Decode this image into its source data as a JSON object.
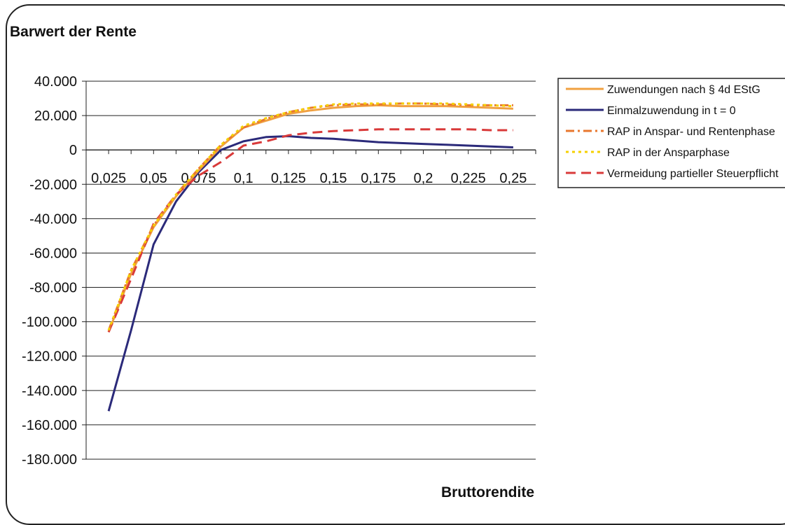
{
  "chart_data": {
    "type": "line",
    "title": "Barwert der Rente",
    "xlabel": "Bruttorendite",
    "ylabel": "",
    "x": [
      0.025,
      0.0375,
      0.05,
      0.0625,
      0.075,
      0.0875,
      0.1,
      0.1125,
      0.125,
      0.1375,
      0.15,
      0.1625,
      0.175,
      0.1875,
      0.2,
      0.2125,
      0.225,
      0.2375,
      0.25
    ],
    "x_tick_labels": [
      "0,025",
      "0,05",
      "0,075",
      "0,1",
      "0,125",
      "0,15",
      "0,175",
      "0,2",
      "0,225",
      "0,25"
    ],
    "ylim": [
      -180000,
      40000
    ],
    "y_tick_labels": [
      "40.000",
      "20.000",
      "0",
      "-20.000",
      "-40.000",
      "-60.000",
      "-80.000",
      "-100.000",
      "-120.000",
      "-140.000",
      "-160.000",
      "-180.000"
    ],
    "grid": "horizontal",
    "legend_position": "right",
    "series": [
      {
        "name": "Zuwendungen nach § 4d EStG",
        "color": "#F0A040",
        "dash": "solid",
        "values": [
          -106000,
          -72000,
          -45000,
          -27000,
          -12000,
          2000,
          13000,
          17000,
          21000,
          23000,
          24500,
          25500,
          26000,
          25500,
          25500,
          25500,
          25000,
          24500,
          24000
        ]
      },
      {
        "name": "Einmalzuwendung in t = 0",
        "color": "#2B2A7A",
        "dash": "solid",
        "values": [
          -152000,
          -105000,
          -55000,
          -30000,
          -13000,
          0,
          5000,
          7500,
          8000,
          7000,
          6500,
          5500,
          4500,
          4000,
          3500,
          3000,
          2500,
          2000,
          1500
        ]
      },
      {
        "name": "RAP in Anspar- und Rentenphase",
        "color": "#E8772E",
        "dash": "dashdot",
        "values": [
          -105000,
          -70000,
          -44000,
          -26000,
          -11000,
          3000,
          13000,
          18000,
          22000,
          24500,
          26000,
          26500,
          26500,
          27000,
          27000,
          26500,
          26000,
          26000,
          26000
        ]
      },
      {
        "name": "RAP in der Ansparphase",
        "color": "#F5D000",
        "dash": "dotted",
        "values": [
          -105000,
          -70000,
          -44000,
          -26000,
          -11000,
          3000,
          14000,
          18500,
          22000,
          24500,
          26500,
          27000,
          27000,
          27000,
          27000,
          27000,
          26500,
          26000,
          25500
        ]
      },
      {
        "name": "Vermeidung partieller Steuerpflicht",
        "color": "#D93A3A",
        "dash": "dashed",
        "values": [
          -106000,
          -75000,
          -43000,
          -26000,
          -15000,
          -7000,
          2500,
          5000,
          8500,
          10000,
          11000,
          11500,
          12000,
          12000,
          12000,
          12000,
          12000,
          11500,
          11500
        ]
      }
    ]
  }
}
